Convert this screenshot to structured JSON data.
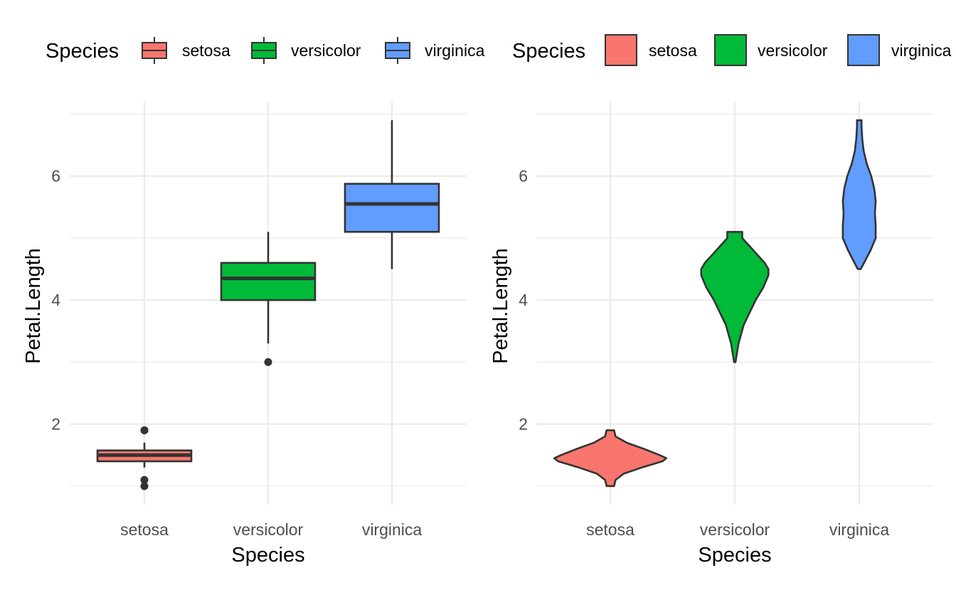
{
  "chart_data": [
    {
      "type": "boxplot",
      "xlabel": "Species",
      "ylabel": "Petal.Length",
      "categories": [
        "setosa",
        "versicolor",
        "virginica"
      ],
      "yticks": [
        2,
        4,
        6
      ],
      "ylim": [
        0.7,
        7.2
      ],
      "grid": true,
      "legend": {
        "title": "Species",
        "position": "top",
        "entries": [
          "setosa",
          "versicolor",
          "virginica"
        ]
      },
      "series": [
        {
          "name": "setosa",
          "color": "#F8766D",
          "min": 1.3,
          "q1": 1.4,
          "median": 1.5,
          "q3": 1.575,
          "max": 1.7,
          "outliers": [
            1.0,
            1.1,
            1.9,
            1.9
          ]
        },
        {
          "name": "versicolor",
          "color": "#00BA38",
          "min": 3.3,
          "q1": 4.0,
          "median": 4.35,
          "q3": 4.6,
          "max": 5.1,
          "outliers": [
            3.0
          ]
        },
        {
          "name": "virginica",
          "color": "#619CFF",
          "min": 4.5,
          "q1": 5.1,
          "median": 5.55,
          "q3": 5.875,
          "max": 6.9,
          "outliers": []
        }
      ]
    },
    {
      "type": "violin",
      "xlabel": "Species",
      "ylabel": "Petal.Length",
      "categories": [
        "setosa",
        "versicolor",
        "virginica"
      ],
      "yticks": [
        2,
        4,
        6
      ],
      "ylim": [
        0.7,
        7.2
      ],
      "grid": true,
      "legend": {
        "title": "Species",
        "position": "top",
        "entries": [
          "setosa",
          "versicolor",
          "virginica"
        ]
      },
      "series": [
        {
          "name": "setosa",
          "color": "#F8766D",
          "profile": [
            [
              1.0,
              0.05
            ],
            [
              1.1,
              0.07
            ],
            [
              1.2,
              0.18
            ],
            [
              1.3,
              0.42
            ],
            [
              1.4,
              0.7
            ],
            [
              1.45,
              0.75
            ],
            [
              1.5,
              0.66
            ],
            [
              1.6,
              0.45
            ],
            [
              1.7,
              0.22
            ],
            [
              1.8,
              0.07
            ],
            [
              1.9,
              0.05
            ]
          ]
        },
        {
          "name": "versicolor",
          "color": "#00BA38",
          "profile": [
            [
              3.0,
              0.01
            ],
            [
              3.3,
              0.05
            ],
            [
              3.6,
              0.12
            ],
            [
              3.8,
              0.2
            ],
            [
              4.0,
              0.28
            ],
            [
              4.2,
              0.38
            ],
            [
              4.4,
              0.45
            ],
            [
              4.5,
              0.45
            ],
            [
              4.6,
              0.4
            ],
            [
              4.8,
              0.25
            ],
            [
              5.0,
              0.1
            ],
            [
              5.1,
              0.1
            ]
          ]
        },
        {
          "name": "virginica",
          "color": "#619CFF",
          "profile": [
            [
              4.5,
              0.02
            ],
            [
              4.8,
              0.15
            ],
            [
              5.0,
              0.22
            ],
            [
              5.2,
              0.22
            ],
            [
              5.4,
              0.21
            ],
            [
              5.6,
              0.22
            ],
            [
              5.8,
              0.2
            ],
            [
              6.0,
              0.16
            ],
            [
              6.2,
              0.1
            ],
            [
              6.4,
              0.06
            ],
            [
              6.6,
              0.04
            ],
            [
              6.8,
              0.03
            ],
            [
              6.9,
              0.03
            ]
          ]
        }
      ]
    }
  ]
}
